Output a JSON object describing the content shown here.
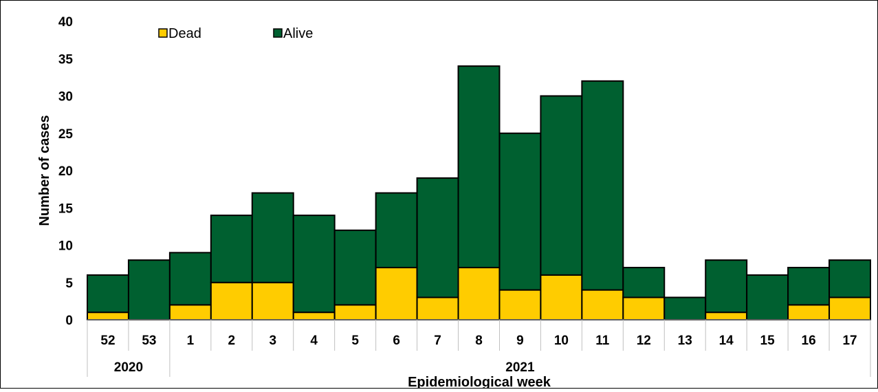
{
  "chart_data": {
    "type": "bar",
    "stacked": true,
    "xlabel": "Epidemiological week",
    "ylabel": "Number of cases",
    "ylim": [
      0,
      40
    ],
    "yticks": [
      0,
      5,
      10,
      15,
      20,
      25,
      30,
      35,
      40
    ],
    "categories": [
      "52",
      "53",
      "1",
      "2",
      "3",
      "4",
      "5",
      "6",
      "7",
      "8",
      "9",
      "10",
      "11",
      "12",
      "13",
      "14",
      "15",
      "16",
      "17"
    ],
    "year_groups": [
      {
        "label": "2020",
        "span": 2
      },
      {
        "label": "2021",
        "span": 17
      }
    ],
    "series": [
      {
        "name": "Dead",
        "color": "#FFCC00",
        "values": [
          1,
          0,
          2,
          5,
          5,
          1,
          2,
          7,
          3,
          7,
          4,
          6,
          4,
          3,
          0,
          1,
          0,
          2,
          3
        ]
      },
      {
        "name": "Alive",
        "color": "#006030",
        "values": [
          5,
          8,
          7,
          9,
          12,
          13,
          10,
          10,
          16,
          27,
          21,
          24,
          28,
          4,
          3,
          7,
          6,
          5,
          5
        ]
      }
    ],
    "legend_position": "top-left",
    "grid": false
  }
}
